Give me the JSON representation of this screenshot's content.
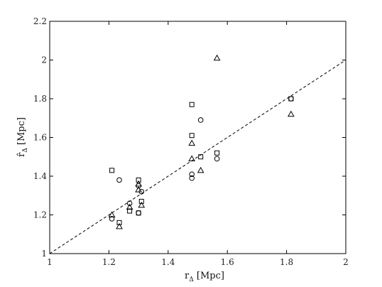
{
  "chart_data": {
    "type": "scatter",
    "x_label": {
      "main": "r",
      "sub": "Δ",
      "unit": " [Mpc]"
    },
    "y_label": {
      "main": "r̂",
      "sub": "Δ",
      "unit": " [Mpc]"
    },
    "xlim": [
      1,
      2
    ],
    "ylim": [
      1,
      2.2
    ],
    "x_ticks": [
      "1",
      "1.2",
      "1.4",
      "1.6",
      "1.8",
      "2"
    ],
    "y_ticks": [
      "1",
      "1.2",
      "1.4",
      "1.6",
      "1.8",
      "2",
      "2.2"
    ],
    "grid": false,
    "legend": "none",
    "reference_line": {
      "style": "dashed",
      "x": [
        1,
        2
      ],
      "y": [
        1,
        2
      ]
    },
    "series": [
      {
        "marker": "square",
        "points": [
          {
            "x": 1.21,
            "y": 1.43
          },
          {
            "x": 1.235,
            "y": 1.16
          },
          {
            "x": 1.27,
            "y": 1.22
          },
          {
            "x": 1.3,
            "y": 1.38
          },
          {
            "x": 1.3,
            "y": 1.21
          },
          {
            "x": 1.31,
            "y": 1.27
          },
          {
            "x": 1.48,
            "y": 1.77
          },
          {
            "x": 1.48,
            "y": 1.61
          },
          {
            "x": 1.51,
            "y": 1.5
          },
          {
            "x": 1.565,
            "y": 1.52
          },
          {
            "x": 1.815,
            "y": 1.8
          }
        ]
      },
      {
        "marker": "circle",
        "points": [
          {
            "x": 1.21,
            "y": 1.18
          },
          {
            "x": 1.235,
            "y": 1.38
          },
          {
            "x": 1.27,
            "y": 1.26
          },
          {
            "x": 1.3,
            "y": 1.35
          },
          {
            "x": 1.3,
            "y": 1.21
          },
          {
            "x": 1.31,
            "y": 1.32
          },
          {
            "x": 1.48,
            "y": 1.41
          },
          {
            "x": 1.48,
            "y": 1.39
          },
          {
            "x": 1.51,
            "y": 1.69
          },
          {
            "x": 1.565,
            "y": 1.49
          },
          {
            "x": 1.815,
            "y": 1.8
          }
        ]
      },
      {
        "marker": "triangle",
        "points": [
          {
            "x": 1.21,
            "y": 1.2
          },
          {
            "x": 1.235,
            "y": 1.14
          },
          {
            "x": 1.27,
            "y": 1.24
          },
          {
            "x": 1.3,
            "y": 1.33
          },
          {
            "x": 1.3,
            "y": 1.36
          },
          {
            "x": 1.31,
            "y": 1.25
          },
          {
            "x": 1.48,
            "y": 1.57
          },
          {
            "x": 1.48,
            "y": 1.49
          },
          {
            "x": 1.51,
            "y": 1.43
          },
          {
            "x": 1.565,
            "y": 2.01
          },
          {
            "x": 1.815,
            "y": 1.72
          }
        ]
      }
    ]
  }
}
